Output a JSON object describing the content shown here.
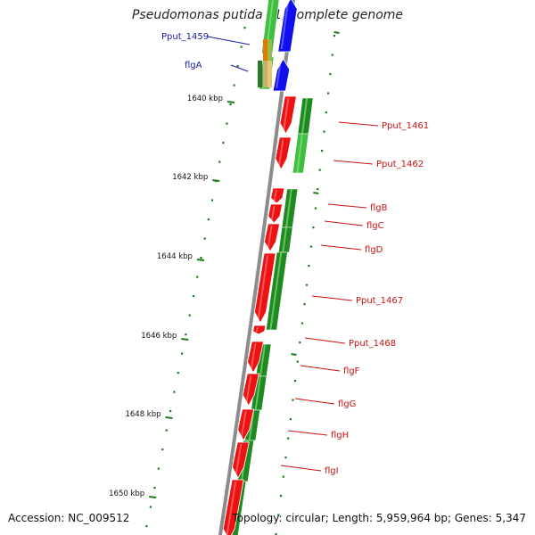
{
  "title": "Pseudomonas putida F1, complete genome",
  "footer": {
    "accession": "Accession: NC_009512",
    "summary": "Topology: circular; Length: 5,959,964 bp; Genes: 5,347"
  },
  "colors": {
    "backbone": "#8c8c8c",
    "tick": "#1e7a1e",
    "forward_gene": "#1010ee",
    "forward_label": "#1a1aa8",
    "reverse_gene": "#ee1111",
    "reverse_label": "#cc1111",
    "orf_dark": "#1f8a1f",
    "orf_light": "#3fbf3f"
  },
  "ticks": [
    {
      "label": "1640 kbp"
    },
    {
      "label": "1642 kbp"
    },
    {
      "label": "1644 kbp"
    },
    {
      "label": "1646 kbp"
    },
    {
      "label": "1648 kbp"
    },
    {
      "label": "1650 kbp"
    }
  ],
  "genes": [
    {
      "name": "Pput_1459",
      "strand": "+"
    },
    {
      "name": "flgA",
      "strand": "+"
    },
    {
      "name": "Pput_1461",
      "strand": "-"
    },
    {
      "name": "Pput_1462",
      "strand": "-"
    },
    {
      "name": "flgB",
      "strand": "-"
    },
    {
      "name": "flgC",
      "strand": "-"
    },
    {
      "name": "flgD",
      "strand": "-"
    },
    {
      "name": "Pput_1467",
      "strand": "-"
    },
    {
      "name": "Pput_1468",
      "strand": "-"
    },
    {
      "name": "flgF",
      "strand": "-"
    },
    {
      "name": "flgG",
      "strand": "-"
    },
    {
      "name": "flgH",
      "strand": "-"
    },
    {
      "name": "flgI",
      "strand": "-"
    }
  ]
}
